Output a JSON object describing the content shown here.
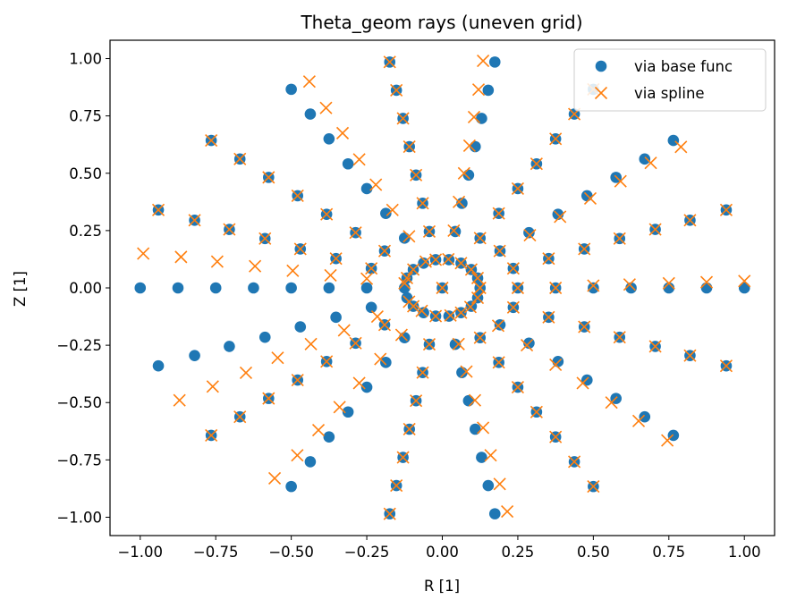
{
  "chart_data": {
    "type": "scatter",
    "title": "Theta_geom rays (uneven grid)",
    "xlabel": "R [1]",
    "ylabel": "Z [1]",
    "xlim": [
      -1.1,
      1.1
    ],
    "ylim": [
      -1.08,
      1.08
    ],
    "xticks": [
      -1.0,
      -0.75,
      -0.5,
      -0.25,
      0.0,
      0.25,
      0.5,
      0.75,
      1.0
    ],
    "xtick_labels": [
      "−1.00",
      "−0.75",
      "−0.50",
      "−0.25",
      "0.00",
      "0.25",
      "0.50",
      "0.75",
      "1.00"
    ],
    "yticks": [
      -1.0,
      -0.75,
      -0.5,
      -0.25,
      0.0,
      0.25,
      0.5,
      0.75,
      1.0
    ],
    "ytick_labels": [
      "−1.00",
      "−0.75",
      "−0.50",
      "−0.25",
      "0.00",
      "0.25",
      "0.50",
      "0.75",
      "1.00"
    ],
    "grid": false,
    "legend_position": "top-right",
    "series": [
      {
        "name": "via base func",
        "marker": "circle",
        "color": "#1f77b4",
        "points": [
          [
            1.0,
            0.0
          ],
          [
            0.875,
            0.0
          ],
          [
            0.75,
            0.0
          ],
          [
            0.625,
            0.0
          ],
          [
            0.5,
            0.0
          ],
          [
            0.375,
            0.0
          ],
          [
            0.25,
            0.0
          ],
          [
            0.125,
            0.0
          ],
          [
            0.94,
            0.34
          ],
          [
            0.82,
            0.295
          ],
          [
            0.705,
            0.255
          ],
          [
            0.587,
            0.215
          ],
          [
            0.47,
            0.17
          ],
          [
            0.352,
            0.128
          ],
          [
            0.235,
            0.085
          ],
          [
            0.117,
            0.043
          ],
          [
            0.765,
            0.643
          ],
          [
            0.67,
            0.562
          ],
          [
            0.575,
            0.482
          ],
          [
            0.479,
            0.402
          ],
          [
            0.383,
            0.321
          ],
          [
            0.287,
            0.241
          ],
          [
            0.191,
            0.161
          ],
          [
            0.096,
            0.08
          ],
          [
            0.5,
            0.866
          ],
          [
            0.437,
            0.758
          ],
          [
            0.375,
            0.65
          ],
          [
            0.312,
            0.541
          ],
          [
            0.25,
            0.433
          ],
          [
            0.187,
            0.325
          ],
          [
            0.125,
            0.217
          ],
          [
            0.062,
            0.108
          ],
          [
            0.174,
            0.985
          ],
          [
            0.152,
            0.862
          ],
          [
            0.13,
            0.739
          ],
          [
            0.109,
            0.616
          ],
          [
            0.087,
            0.492
          ],
          [
            0.065,
            0.369
          ],
          [
            0.043,
            0.246
          ],
          [
            0.022,
            0.123
          ],
          [
            -0.174,
            0.985
          ],
          [
            -0.152,
            0.862
          ],
          [
            -0.13,
            0.739
          ],
          [
            -0.109,
            0.616
          ],
          [
            -0.087,
            0.492
          ],
          [
            -0.065,
            0.369
          ],
          [
            -0.043,
            0.246
          ],
          [
            -0.022,
            0.123
          ],
          [
            -0.5,
            0.866
          ],
          [
            -0.437,
            0.758
          ],
          [
            -0.375,
            0.65
          ],
          [
            -0.312,
            0.541
          ],
          [
            -0.25,
            0.433
          ],
          [
            -0.187,
            0.325
          ],
          [
            -0.125,
            0.217
          ],
          [
            -0.062,
            0.108
          ],
          [
            -0.765,
            0.643
          ],
          [
            -0.67,
            0.562
          ],
          [
            -0.575,
            0.482
          ],
          [
            -0.479,
            0.402
          ],
          [
            -0.383,
            0.321
          ],
          [
            -0.287,
            0.241
          ],
          [
            -0.191,
            0.161
          ],
          [
            -0.096,
            0.08
          ],
          [
            -0.94,
            0.34
          ],
          [
            -0.82,
            0.295
          ],
          [
            -0.705,
            0.255
          ],
          [
            -0.587,
            0.215
          ],
          [
            -0.47,
            0.17
          ],
          [
            -0.352,
            0.128
          ],
          [
            -0.235,
            0.085
          ],
          [
            -0.117,
            0.043
          ],
          [
            -1.0,
            0.0
          ],
          [
            -0.875,
            0.0
          ],
          [
            -0.75,
            0.0
          ],
          [
            -0.625,
            0.0
          ],
          [
            -0.5,
            0.0
          ],
          [
            -0.375,
            0.0
          ],
          [
            -0.25,
            0.0
          ],
          [
            -0.125,
            0.0
          ],
          [
            -0.94,
            -0.34
          ],
          [
            -0.82,
            -0.295
          ],
          [
            -0.705,
            -0.255
          ],
          [
            -0.587,
            -0.215
          ],
          [
            -0.47,
            -0.17
          ],
          [
            -0.352,
            -0.128
          ],
          [
            -0.235,
            -0.085
          ],
          [
            -0.117,
            -0.043
          ],
          [
            -0.765,
            -0.643
          ],
          [
            -0.67,
            -0.562
          ],
          [
            -0.575,
            -0.482
          ],
          [
            -0.479,
            -0.402
          ],
          [
            -0.383,
            -0.321
          ],
          [
            -0.287,
            -0.241
          ],
          [
            -0.191,
            -0.161
          ],
          [
            -0.096,
            -0.08
          ],
          [
            -0.5,
            -0.866
          ],
          [
            -0.437,
            -0.758
          ],
          [
            -0.375,
            -0.65
          ],
          [
            -0.312,
            -0.541
          ],
          [
            -0.25,
            -0.433
          ],
          [
            -0.187,
            -0.325
          ],
          [
            -0.125,
            -0.217
          ],
          [
            -0.062,
            -0.108
          ],
          [
            -0.174,
            -0.985
          ],
          [
            -0.152,
            -0.862
          ],
          [
            -0.13,
            -0.739
          ],
          [
            -0.109,
            -0.616
          ],
          [
            -0.087,
            -0.492
          ],
          [
            -0.065,
            -0.369
          ],
          [
            -0.043,
            -0.246
          ],
          [
            -0.022,
            -0.123
          ],
          [
            0.174,
            -0.985
          ],
          [
            0.152,
            -0.862
          ],
          [
            0.13,
            -0.739
          ],
          [
            0.109,
            -0.616
          ],
          [
            0.087,
            -0.492
          ],
          [
            0.065,
            -0.369
          ],
          [
            0.043,
            -0.246
          ],
          [
            0.022,
            -0.123
          ],
          [
            0.5,
            -0.866
          ],
          [
            0.437,
            -0.758
          ],
          [
            0.375,
            -0.65
          ],
          [
            0.312,
            -0.541
          ],
          [
            0.25,
            -0.433
          ],
          [
            0.187,
            -0.325
          ],
          [
            0.125,
            -0.217
          ],
          [
            0.062,
            -0.108
          ],
          [
            0.765,
            -0.643
          ],
          [
            0.67,
            -0.562
          ],
          [
            0.575,
            -0.482
          ],
          [
            0.479,
            -0.402
          ],
          [
            0.383,
            -0.321
          ],
          [
            0.287,
            -0.241
          ],
          [
            0.191,
            -0.161
          ],
          [
            0.096,
            -0.08
          ],
          [
            0.94,
            -0.34
          ],
          [
            0.82,
            -0.295
          ],
          [
            0.705,
            -0.255
          ],
          [
            0.587,
            -0.215
          ],
          [
            0.47,
            -0.17
          ],
          [
            0.352,
            -0.128
          ],
          [
            0.235,
            -0.085
          ],
          [
            0.117,
            -0.043
          ],
          [
            0.0,
            0.0
          ]
        ]
      },
      {
        "name": "via spline",
        "marker": "x",
        "color": "#ff7f0e",
        "points": [
          [
            1.0,
            0.03
          ],
          [
            0.875,
            0.025
          ],
          [
            0.75,
            0.02
          ],
          [
            0.62,
            0.015
          ],
          [
            0.5,
            0.01
          ],
          [
            0.375,
            0.0
          ],
          [
            0.25,
            0.0
          ],
          [
            0.125,
            0.0
          ],
          [
            0.94,
            0.34
          ],
          [
            0.82,
            0.295
          ],
          [
            0.705,
            0.255
          ],
          [
            0.587,
            0.215
          ],
          [
            0.47,
            0.17
          ],
          [
            0.352,
            0.128
          ],
          [
            0.235,
            0.085
          ],
          [
            0.117,
            0.043
          ],
          [
            0.79,
            0.615
          ],
          [
            0.69,
            0.545
          ],
          [
            0.59,
            0.465
          ],
          [
            0.49,
            0.39
          ],
          [
            0.39,
            0.31
          ],
          [
            0.29,
            0.23
          ],
          [
            0.19,
            0.161
          ],
          [
            0.096,
            0.08
          ],
          [
            0.5,
            0.866
          ],
          [
            0.437,
            0.758
          ],
          [
            0.375,
            0.65
          ],
          [
            0.312,
            0.541
          ],
          [
            0.25,
            0.433
          ],
          [
            0.187,
            0.325
          ],
          [
            0.125,
            0.217
          ],
          [
            0.062,
            0.108
          ],
          [
            0.135,
            0.99
          ],
          [
            0.12,
            0.865
          ],
          [
            0.105,
            0.745
          ],
          [
            0.09,
            0.62
          ],
          [
            0.072,
            0.5
          ],
          [
            0.055,
            0.375
          ],
          [
            0.038,
            0.25
          ],
          [
            0.02,
            0.125
          ],
          [
            -0.174,
            0.985
          ],
          [
            -0.152,
            0.862
          ],
          [
            -0.13,
            0.739
          ],
          [
            -0.109,
            0.616
          ],
          [
            -0.087,
            0.492
          ],
          [
            -0.065,
            0.369
          ],
          [
            -0.043,
            0.246
          ],
          [
            -0.022,
            0.123
          ],
          [
            -0.44,
            0.9
          ],
          [
            -0.385,
            0.785
          ],
          [
            -0.33,
            0.675
          ],
          [
            -0.275,
            0.56
          ],
          [
            -0.22,
            0.45
          ],
          [
            -0.165,
            0.34
          ],
          [
            -0.11,
            0.225
          ],
          [
            -0.055,
            0.115
          ],
          [
            -0.765,
            0.643
          ],
          [
            -0.67,
            0.562
          ],
          [
            -0.575,
            0.482
          ],
          [
            -0.479,
            0.402
          ],
          [
            -0.383,
            0.321
          ],
          [
            -0.287,
            0.241
          ],
          [
            -0.191,
            0.161
          ],
          [
            -0.096,
            0.08
          ],
          [
            -0.94,
            0.34
          ],
          [
            -0.82,
            0.295
          ],
          [
            -0.705,
            0.255
          ],
          [
            -0.587,
            0.215
          ],
          [
            -0.47,
            0.17
          ],
          [
            -0.352,
            0.128
          ],
          [
            -0.235,
            0.085
          ],
          [
            -0.117,
            0.043
          ],
          [
            -0.99,
            0.15
          ],
          [
            -0.865,
            0.135
          ],
          [
            -0.745,
            0.115
          ],
          [
            -0.62,
            0.095
          ],
          [
            -0.495,
            0.075
          ],
          [
            -0.37,
            0.055
          ],
          [
            -0.25,
            0.04
          ],
          [
            -0.125,
            0.02
          ],
          [
            -0.87,
            -0.49
          ],
          [
            -0.76,
            -0.43
          ],
          [
            -0.65,
            -0.37
          ],
          [
            -0.545,
            -0.305
          ],
          [
            -0.435,
            -0.245
          ],
          [
            -0.325,
            -0.185
          ],
          [
            -0.215,
            -0.125
          ],
          [
            -0.11,
            -0.06
          ],
          [
            -0.765,
            -0.643
          ],
          [
            -0.67,
            -0.562
          ],
          [
            -0.575,
            -0.482
          ],
          [
            -0.479,
            -0.402
          ],
          [
            -0.383,
            -0.321
          ],
          [
            -0.287,
            -0.241
          ],
          [
            -0.191,
            -0.161
          ],
          [
            -0.096,
            -0.08
          ],
          [
            -0.555,
            -0.83
          ],
          [
            -0.48,
            -0.73
          ],
          [
            -0.41,
            -0.62
          ],
          [
            -0.34,
            -0.52
          ],
          [
            -0.275,
            -0.415
          ],
          [
            -0.205,
            -0.31
          ],
          [
            -0.135,
            -0.205
          ],
          [
            -0.068,
            -0.1
          ],
          [
            -0.174,
            -0.985
          ],
          [
            -0.152,
            -0.862
          ],
          [
            -0.13,
            -0.739
          ],
          [
            -0.109,
            -0.616
          ],
          [
            -0.087,
            -0.492
          ],
          [
            -0.065,
            -0.369
          ],
          [
            -0.043,
            -0.246
          ],
          [
            -0.022,
            -0.123
          ],
          [
            0.215,
            -0.975
          ],
          [
            0.19,
            -0.855
          ],
          [
            0.16,
            -0.73
          ],
          [
            0.135,
            -0.61
          ],
          [
            0.108,
            -0.49
          ],
          [
            0.08,
            -0.365
          ],
          [
            0.054,
            -0.245
          ],
          [
            0.027,
            -0.12
          ],
          [
            0.5,
            -0.866
          ],
          [
            0.437,
            -0.758
          ],
          [
            0.375,
            -0.65
          ],
          [
            0.312,
            -0.541
          ],
          [
            0.25,
            -0.433
          ],
          [
            0.187,
            -0.325
          ],
          [
            0.125,
            -0.217
          ],
          [
            0.062,
            -0.108
          ],
          [
            0.745,
            -0.665
          ],
          [
            0.65,
            -0.58
          ],
          [
            0.56,
            -0.5
          ],
          [
            0.465,
            -0.415
          ],
          [
            0.375,
            -0.335
          ],
          [
            0.28,
            -0.25
          ],
          [
            0.185,
            -0.165
          ],
          [
            0.093,
            -0.083
          ],
          [
            0.94,
            -0.34
          ],
          [
            0.82,
            -0.295
          ],
          [
            0.705,
            -0.255
          ],
          [
            0.587,
            -0.215
          ],
          [
            0.47,
            -0.17
          ],
          [
            0.352,
            -0.128
          ],
          [
            0.235,
            -0.085
          ],
          [
            0.117,
            -0.043
          ],
          [
            0.0,
            0.0
          ]
        ]
      }
    ]
  }
}
